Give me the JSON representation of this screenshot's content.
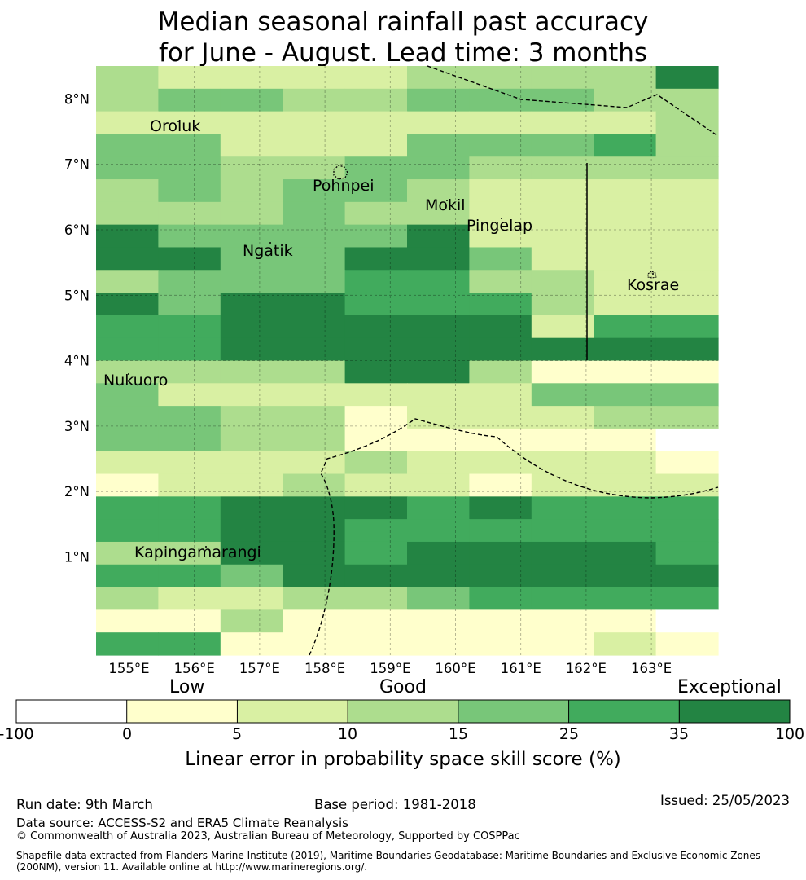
{
  "title": {
    "line1": "Median seasonal rainfall past accuracy",
    "line2": "for June - August. Lead time: 3 months"
  },
  "map": {
    "lon_labels": [
      "155°E",
      "156°E",
      "157°E",
      "158°E",
      "159°E",
      "160°E",
      "161°E",
      "162°E",
      "163°E"
    ],
    "lat_labels": [
      "1°N",
      "2°N",
      "3°N",
      "4°N",
      "5°N",
      "6°N",
      "7°N",
      "8°N"
    ],
    "places": [
      "Oroluk",
      "Pohnpei",
      "Mokil",
      "Pingelap",
      "Ngatik",
      "Kosrae",
      "Nukuoro",
      "Kapingamarangi"
    ],
    "colors": [
      "#ffffff",
      "#ffffcc",
      "#d9f0a3",
      "#addd8e",
      "#78c679",
      "#41ab5d",
      "#238443"
    ],
    "grid": [
      "3222233336",
      "3443344433",
      "2222222223",
      "4422244453",
      "4433443333",
      "3434432222",
      "3334332222",
      "6444462222",
      "6644664222",
      "3444553322",
      "6466555322",
      "5566666255",
      "5566666666",
      "3333663111",
      "4222222444",
      "4433122233",
      "4433111110",
      "2222322221",
      "1223221222",
      "5566656555",
      "5566555555",
      "3366566665",
      "5546666666",
      "3223345555",
      "1131111110",
      "5511111121"
    ]
  },
  "colorbar": {
    "categories": [
      "Low",
      "Good",
      "Exceptional"
    ],
    "ticks": [
      "-100",
      "0",
      "5",
      "10",
      "15",
      "25",
      "35",
      "100"
    ],
    "colors": [
      "#ffffff",
      "#ffffcc",
      "#d9f0a3",
      "#addd8e",
      "#78c679",
      "#41ab5d",
      "#238443"
    ],
    "label": "Linear error in probability space skill score (%)"
  },
  "footer": {
    "run_date": "Run date: 9th March",
    "base_period": "Base period: 1981-2018",
    "issued": "Issued: 25/05/2023",
    "data_source": "Data source: ACCESS-S2 and ERA5 Climate Reanalysis",
    "copyright": "© Commonwealth of Australia 2023, Australian Bureau of Meteorology, Supported by COSPPac",
    "shapefile1": "Shapefile data extracted from Flanders Marine Institute (2019), Maritime Boundaries Geodatabase: Maritime Boundaries and Exclusive Economic Zones",
    "shapefile2": "(200NM), version 11. Available online at http://www.marineregions.org/."
  }
}
